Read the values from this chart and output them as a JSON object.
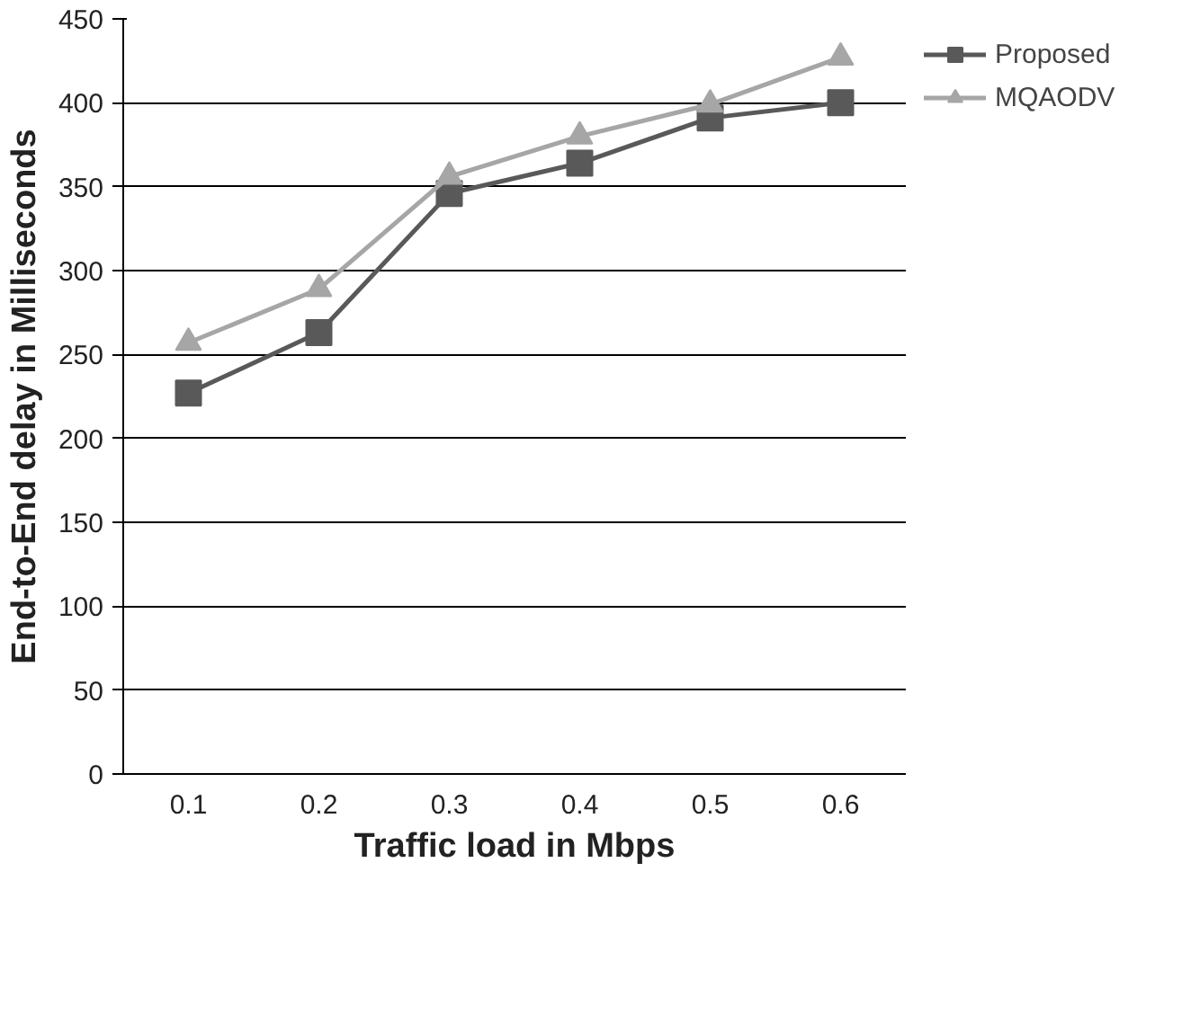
{
  "chart_data": {
    "type": "line",
    "xlabel": "Traffic load in Mbps",
    "ylabel": "End-to-End delay in Milliseconds",
    "categories": [
      "0.1",
      "0.2",
      "0.3",
      "0.4",
      "0.5",
      "0.6"
    ],
    "series": [
      {
        "name": "Proposed",
        "color": "#595959",
        "marker": "square",
        "values": [
          227,
          263,
          346,
          364,
          391,
          400
        ]
      },
      {
        "name": "MQAODV",
        "color": "#a6a6a6",
        "marker": "triangle",
        "values": [
          257,
          289,
          356,
          380,
          399,
          427
        ]
      }
    ],
    "ylim": [
      0,
      450
    ],
    "yticks": [
      0,
      50,
      100,
      150,
      200,
      250,
      300,
      350,
      400,
      450
    ],
    "grid": "y",
    "legend": "top right",
    "line_style": "solid"
  }
}
